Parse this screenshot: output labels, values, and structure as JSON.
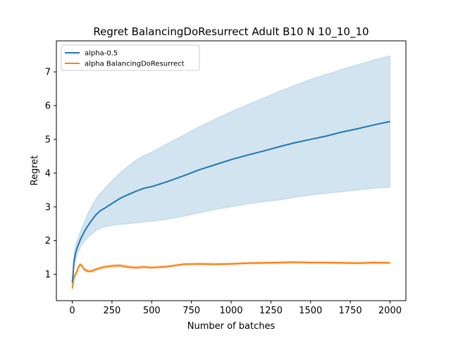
{
  "chart_data": {
    "type": "line",
    "title": "Regret BalancingDoResurrect Adult B10 N 10_10_10",
    "xlabel": "Number of batches",
    "ylabel": "Regret",
    "xlim": [
      -100,
      2100
    ],
    "ylim": [
      0.22,
      7.92
    ],
    "x_ticks": [
      0,
      250,
      500,
      750,
      1000,
      1250,
      1500,
      1750,
      2000
    ],
    "y_ticks": [
      1,
      2,
      3,
      4,
      5,
      6,
      7
    ],
    "grid": false,
    "legend_position": "upper-left",
    "series": [
      {
        "name": "alpha-0.5",
        "color": "#1f77b4",
        "band_color": "#1f77b4",
        "x": [
          0,
          5,
          10,
          20,
          30,
          40,
          50,
          60,
          80,
          100,
          125,
          150,
          175,
          200,
          250,
          300,
          350,
          400,
          450,
          500,
          600,
          700,
          800,
          900,
          1000,
          1100,
          1200,
          1300,
          1400,
          1500,
          1600,
          1700,
          1800,
          1900,
          2000
        ],
        "y": [
          0.75,
          1.0,
          1.35,
          1.62,
          1.78,
          1.9,
          2.02,
          2.12,
          2.3,
          2.45,
          2.62,
          2.77,
          2.88,
          2.95,
          3.1,
          3.25,
          3.36,
          3.46,
          3.55,
          3.6,
          3.75,
          3.92,
          4.1,
          4.25,
          4.4,
          4.53,
          4.65,
          4.78,
          4.9,
          5.0,
          5.1,
          5.22,
          5.32,
          5.43,
          5.53
        ],
        "lower": [
          0.65,
          0.85,
          1.15,
          1.4,
          1.55,
          1.68,
          1.78,
          1.88,
          2.0,
          2.1,
          2.2,
          2.3,
          2.36,
          2.4,
          2.45,
          2.48,
          2.5,
          2.52,
          2.55,
          2.57,
          2.63,
          2.72,
          2.82,
          2.92,
          3.0,
          3.08,
          3.15,
          3.2,
          3.28,
          3.35,
          3.4,
          3.45,
          3.5,
          3.55,
          3.58
        ],
        "upper": [
          0.85,
          1.15,
          1.55,
          1.85,
          2.0,
          2.12,
          2.25,
          2.38,
          2.6,
          2.82,
          3.05,
          3.25,
          3.4,
          3.52,
          3.78,
          4.0,
          4.2,
          4.38,
          4.52,
          4.62,
          4.88,
          5.12,
          5.38,
          5.6,
          5.82,
          6.02,
          6.22,
          6.42,
          6.6,
          6.78,
          6.93,
          7.08,
          7.22,
          7.36,
          7.48
        ]
      },
      {
        "name": "alpha BalancingDoResurrect",
        "color": "#ff7f0e",
        "band_color": "#ff7f0e",
        "x": [
          0,
          5,
          10,
          20,
          30,
          40,
          50,
          60,
          75,
          100,
          125,
          150,
          200,
          250,
          300,
          350,
          400,
          450,
          500,
          600,
          700,
          800,
          900,
          1000,
          1100,
          1200,
          1300,
          1400,
          1500,
          1600,
          1700,
          1800,
          1900,
          2000
        ],
        "y": [
          0.58,
          0.72,
          0.9,
          1.0,
          1.1,
          1.22,
          1.29,
          1.26,
          1.15,
          1.09,
          1.1,
          1.15,
          1.22,
          1.25,
          1.26,
          1.22,
          1.2,
          1.22,
          1.2,
          1.23,
          1.3,
          1.31,
          1.3,
          1.31,
          1.33,
          1.34,
          1.35,
          1.36,
          1.35,
          1.35,
          1.34,
          1.33,
          1.35,
          1.34
        ],
        "lower": [
          0.52,
          0.66,
          0.84,
          0.95,
          1.05,
          1.17,
          1.25,
          1.22,
          1.11,
          1.05,
          1.06,
          1.11,
          1.18,
          1.21,
          1.22,
          1.18,
          1.16,
          1.18,
          1.17,
          1.2,
          1.27,
          1.28,
          1.27,
          1.28,
          1.3,
          1.31,
          1.32,
          1.33,
          1.32,
          1.32,
          1.31,
          1.3,
          1.32,
          1.31
        ],
        "upper": [
          0.64,
          0.78,
          0.96,
          1.05,
          1.15,
          1.27,
          1.33,
          1.3,
          1.19,
          1.13,
          1.14,
          1.19,
          1.26,
          1.29,
          1.3,
          1.26,
          1.24,
          1.26,
          1.23,
          1.26,
          1.33,
          1.34,
          1.33,
          1.34,
          1.36,
          1.37,
          1.38,
          1.39,
          1.38,
          1.38,
          1.37,
          1.36,
          1.38,
          1.37
        ]
      }
    ]
  }
}
